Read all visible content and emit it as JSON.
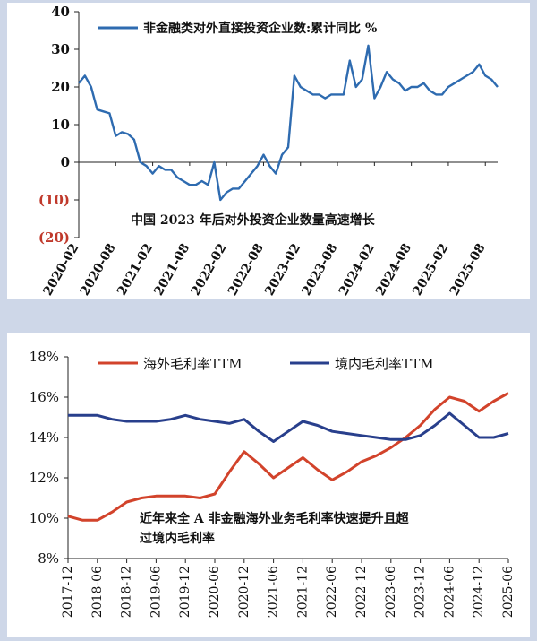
{
  "chart_data": [
    {
      "type": "line",
      "title": "",
      "annotation": "中国 2023 年后对外投资企业数量高速增长",
      "xlabel": "",
      "ylabel": "",
      "ylim": [
        -20,
        40
      ],
      "y_ticks": [
        40,
        30,
        20,
        10,
        0,
        -10,
        -20
      ],
      "y_tick_labels": [
        "40",
        "30",
        "20",
        "10",
        "0",
        "(10)",
        "(20)"
      ],
      "x_tick_labels": [
        "2020-02",
        "2020-08",
        "2021-02",
        "2021-08",
        "2022-02",
        "2022-08",
        "2023-02",
        "2023-08",
        "2024-02",
        "2024-08",
        "2025-02",
        "2025-08"
      ],
      "legend_position": "top",
      "grid": false,
      "negative_label_color": "#c0392b",
      "series": [
        {
          "name": "非金融类对外直接投资企业数:累计同比 %",
          "color": "#2e6bb0",
          "x": [
            "2020-02",
            "2020-03",
            "2020-04",
            "2020-05",
            "2020-06",
            "2020-07",
            "2020-08",
            "2020-09",
            "2020-10",
            "2020-11",
            "2020-12",
            "2021-01",
            "2021-02",
            "2021-03",
            "2021-04",
            "2021-05",
            "2021-06",
            "2021-07",
            "2021-08",
            "2021-09",
            "2021-10",
            "2021-11",
            "2021-12",
            "2022-01",
            "2022-02",
            "2022-03",
            "2022-04",
            "2022-05",
            "2022-06",
            "2022-07",
            "2022-08",
            "2022-09",
            "2022-10",
            "2022-11",
            "2022-12",
            "2023-01",
            "2023-02",
            "2023-03",
            "2023-04",
            "2023-05",
            "2023-06",
            "2023-07",
            "2023-08",
            "2023-09",
            "2023-10",
            "2023-11",
            "2023-12",
            "2024-01",
            "2024-02",
            "2024-03",
            "2024-04",
            "2024-05",
            "2024-06",
            "2024-07",
            "2024-08",
            "2024-09",
            "2024-10",
            "2024-11",
            "2024-12",
            "2025-01",
            "2025-02",
            "2025-03",
            "2025-04",
            "2025-05",
            "2025-06",
            "2025-07",
            "2025-08",
            "2025-09",
            "2025-10"
          ],
          "y": [
            21,
            23,
            20,
            14,
            13.5,
            13,
            7,
            8,
            7.5,
            6,
            0,
            -1,
            -3,
            -1,
            -2,
            -2,
            -4,
            -5,
            -6,
            -6,
            -5,
            -6,
            0,
            -10,
            -8,
            -7,
            -7,
            -5,
            -3,
            -1,
            2,
            -1,
            -3,
            2,
            4,
            23,
            20,
            19,
            18,
            18,
            17,
            18,
            18,
            18,
            27,
            20,
            22,
            31,
            17,
            20,
            24,
            22,
            21,
            19,
            20,
            20,
            21,
            19,
            18,
            18,
            20,
            21,
            22,
            23,
            24,
            26,
            23,
            22,
            20
          ]
        }
      ]
    },
    {
      "type": "line",
      "title": "",
      "annotation_lines": [
        "近年来全 A 非金融海外业务毛利率快速提升且超",
        "过境内毛利率"
      ],
      "xlabel": "",
      "ylabel": "",
      "ylim": [
        8,
        18
      ],
      "y_ticks": [
        18,
        16,
        14,
        12,
        10,
        8
      ],
      "y_tick_labels": [
        "18%",
        "16%",
        "14%",
        "12%",
        "10%",
        "8%"
      ],
      "x_tick_labels": [
        "2017-12",
        "2018-06",
        "2018-12",
        "2019-06",
        "2019-12",
        "2020-06",
        "2020-12",
        "2021-06",
        "2021-12",
        "2022-06",
        "2022-12",
        "2023-06",
        "2023-12",
        "2024-06",
        "2024-12",
        "2025-06"
      ],
      "legend_position": "top",
      "grid": false,
      "series": [
        {
          "name": "海外毛利率TTM",
          "color": "#d2432b",
          "x": [
            "2017-12",
            "2018-03",
            "2018-06",
            "2018-09",
            "2018-12",
            "2019-03",
            "2019-06",
            "2019-09",
            "2019-12",
            "2020-03",
            "2020-06",
            "2020-09",
            "2020-12",
            "2021-03",
            "2021-06",
            "2021-09",
            "2021-12",
            "2022-03",
            "2022-06",
            "2022-09",
            "2022-12",
            "2023-03",
            "2023-06",
            "2023-09",
            "2023-12",
            "2024-03",
            "2024-06",
            "2024-09",
            "2024-12",
            "2025-03",
            "2025-06"
          ],
          "y": [
            10.1,
            9.9,
            9.9,
            10.3,
            10.8,
            11.0,
            11.1,
            11.1,
            11.1,
            11.0,
            11.2,
            12.3,
            13.3,
            12.7,
            12.0,
            12.5,
            13.0,
            12.4,
            11.9,
            12.3,
            12.8,
            13.1,
            13.5,
            14.0,
            14.6,
            15.4,
            16.0,
            15.8,
            15.3,
            15.8,
            16.2
          ]
        },
        {
          "name": "境内毛利率TTM",
          "color": "#283f8c",
          "x": [
            "2017-12",
            "2018-03",
            "2018-06",
            "2018-09",
            "2018-12",
            "2019-03",
            "2019-06",
            "2019-09",
            "2019-12",
            "2020-03",
            "2020-06",
            "2020-09",
            "2020-12",
            "2021-03",
            "2021-06",
            "2021-09",
            "2021-12",
            "2022-03",
            "2022-06",
            "2022-09",
            "2022-12",
            "2023-03",
            "2023-06",
            "2023-09",
            "2023-12",
            "2024-03",
            "2024-06",
            "2024-09",
            "2024-12",
            "2025-03",
            "2025-06"
          ],
          "y": [
            15.1,
            15.1,
            15.1,
            14.9,
            14.8,
            14.8,
            14.8,
            14.9,
            15.1,
            14.9,
            14.8,
            14.7,
            14.9,
            14.3,
            13.8,
            14.3,
            14.8,
            14.6,
            14.3,
            14.2,
            14.1,
            14.0,
            13.9,
            13.9,
            14.1,
            14.6,
            15.2,
            14.6,
            14.0,
            14.0,
            14.2
          ]
        }
      ]
    }
  ]
}
